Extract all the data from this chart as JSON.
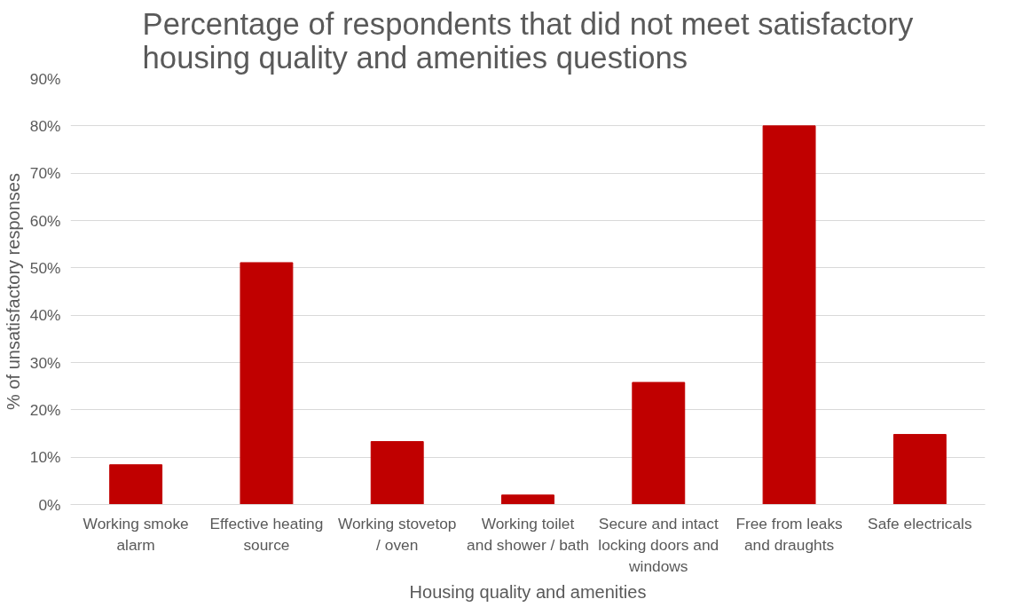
{
  "chart_data": {
    "type": "bar",
    "title": "Percentage of respondents that did not meet satisfactory housing quality and amenities questions",
    "xlabel": "Housing quality and amenities",
    "ylabel": "% of unsatisfactory responses",
    "categories": [
      "Working smoke alarm",
      "Effective heating source",
      "Working stovetop / oven",
      "Working toilet and shower / bath",
      "Secure and intact locking doors and windows",
      "Free from leaks and draughts",
      "Safe electricals"
    ],
    "values": [
      8.4,
      51.1,
      13.3,
      2.0,
      25.8,
      80.0,
      14.8
    ],
    "color": "#c00000",
    "ylim": [
      0,
      90
    ],
    "yticks": [
      {
        "value": 0,
        "label": "0%"
      },
      {
        "value": 10,
        "label": "10%"
      },
      {
        "value": 20,
        "label": "20%"
      },
      {
        "value": 30,
        "label": "30%"
      },
      {
        "value": 40,
        "label": "40%"
      },
      {
        "value": 50,
        "label": "50%"
      },
      {
        "value": 60,
        "label": "60%"
      },
      {
        "value": 70,
        "label": "70%"
      },
      {
        "value": 80,
        "label": "80%"
      },
      {
        "value": 90,
        "label": "90%"
      }
    ],
    "grid": "y"
  }
}
